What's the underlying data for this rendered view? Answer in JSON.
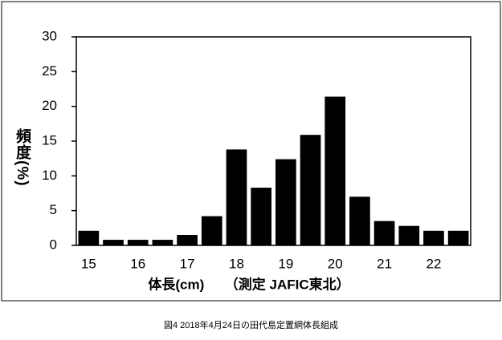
{
  "chart_data": {
    "type": "bar",
    "ylabel": "頻度(%)",
    "xlabel": "体長(cm)　　（測定  JAFIC東北）",
    "caption": "図4  2018年4月24日の田代島定置網体長組成",
    "categories": [
      "15",
      null,
      "16",
      null,
      "17",
      null,
      "18",
      null,
      "19",
      null,
      "20",
      null,
      "21",
      null,
      "22",
      null
    ],
    "values": [
      2.1,
      0.8,
      0.8,
      0.8,
      1.5,
      4.2,
      13.8,
      8.3,
      12.4,
      15.9,
      21.4,
      7.0,
      3.5,
      2.8,
      2.1,
      2.1
    ],
    "color": "#000000",
    "ylim": [
      0,
      30
    ],
    "yticks": [
      0,
      5,
      10,
      15,
      20,
      25,
      30
    ],
    "grid": false
  }
}
